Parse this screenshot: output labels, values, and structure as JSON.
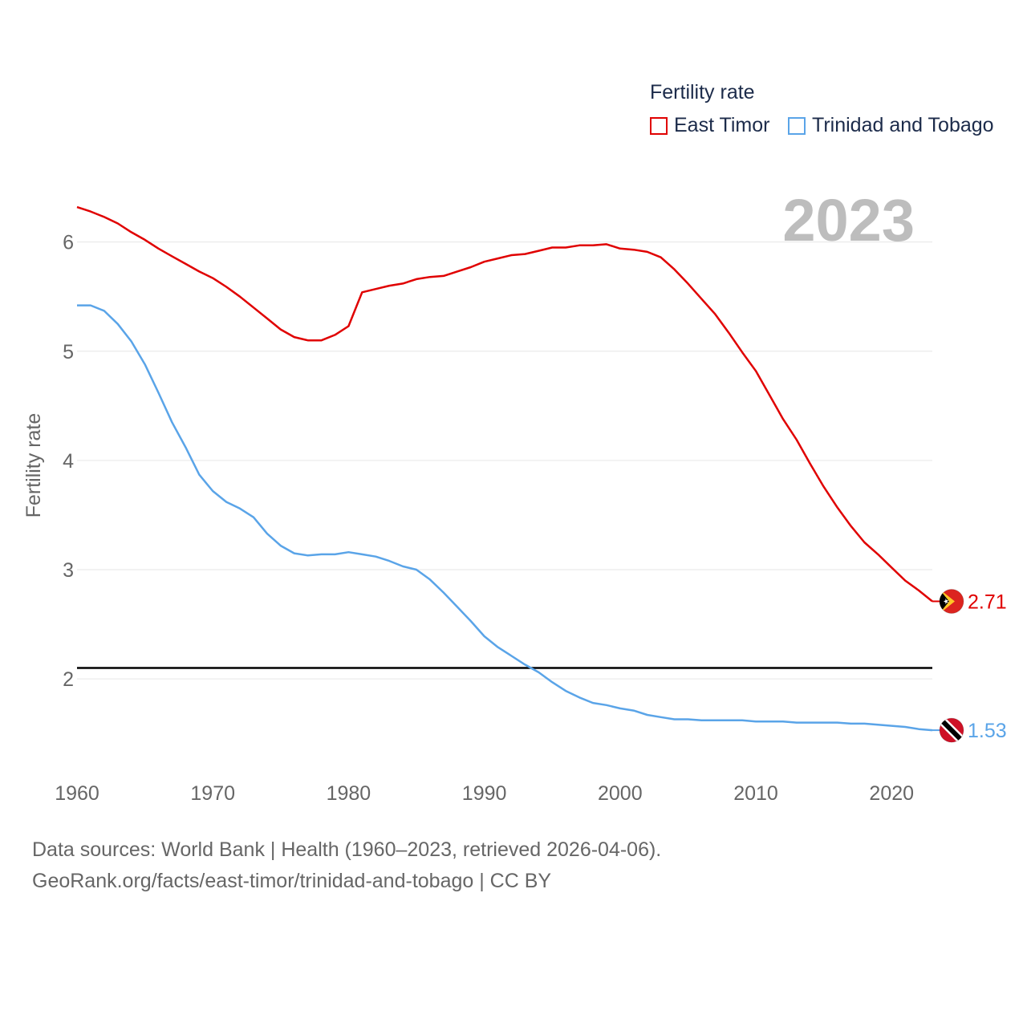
{
  "footer": {
    "line1": "Data sources: World Bank | Health (1960–2023, retrieved 2026-04-06).",
    "line2": "GeoRank.org/facts/east-timor/trinidad-and-tobago | CC BY"
  },
  "chart_data": {
    "type": "line",
    "title": "",
    "year_label": "2023",
    "legend_title": "Fertility rate",
    "xlabel": "",
    "ylabel": "Fertility rate",
    "xlim": [
      1960,
      2023
    ],
    "ylim": [
      1.2,
      6.6
    ],
    "x_ticks": [
      1960,
      1970,
      1980,
      1990,
      2000,
      2010,
      2020
    ],
    "y_ticks": [
      2,
      3,
      4,
      5,
      6
    ],
    "reference_line": {
      "y": 2.1,
      "color": "#000000"
    },
    "x": [
      1960,
      1961,
      1962,
      1963,
      1964,
      1965,
      1966,
      1967,
      1968,
      1969,
      1970,
      1971,
      1972,
      1973,
      1974,
      1975,
      1976,
      1977,
      1978,
      1979,
      1980,
      1981,
      1982,
      1983,
      1984,
      1985,
      1986,
      1987,
      1988,
      1989,
      1990,
      1991,
      1992,
      1993,
      1994,
      1995,
      1996,
      1997,
      1998,
      1999,
      2000,
      2001,
      2002,
      2003,
      2004,
      2005,
      2006,
      2007,
      2008,
      2009,
      2010,
      2011,
      2012,
      2013,
      2014,
      2015,
      2016,
      2017,
      2018,
      2019,
      2020,
      2021,
      2022,
      2023
    ],
    "series": [
      {
        "name": "East Timor",
        "color": "#e00000",
        "end_label": "2.71",
        "flag": "east-timor-flag-icon",
        "values": [
          6.32,
          6.28,
          6.23,
          6.17,
          6.09,
          6.02,
          5.94,
          5.87,
          5.8,
          5.73,
          5.67,
          5.59,
          5.5,
          5.4,
          5.3,
          5.2,
          5.13,
          5.1,
          5.1,
          5.15,
          5.23,
          5.54,
          5.57,
          5.6,
          5.62,
          5.66,
          5.68,
          5.69,
          5.73,
          5.77,
          5.82,
          5.85,
          5.88,
          5.89,
          5.92,
          5.95,
          5.95,
          5.97,
          5.97,
          5.98,
          5.94,
          5.93,
          5.91,
          5.86,
          5.75,
          5.62,
          5.48,
          5.34,
          5.17,
          4.99,
          4.82,
          4.6,
          4.38,
          4.19,
          3.97,
          3.76,
          3.57,
          3.4,
          3.25,
          3.14,
          3.02,
          2.9,
          2.81,
          2.71
        ]
      },
      {
        "name": "Trinidad and Tobago",
        "color": "#5aa4e8",
        "end_label": "1.53",
        "flag": "trinidad-and-tobago-flag-icon",
        "values": [
          5.42,
          5.42,
          5.37,
          5.25,
          5.09,
          4.88,
          4.62,
          4.35,
          4.12,
          3.87,
          3.72,
          3.62,
          3.56,
          3.48,
          3.33,
          3.22,
          3.15,
          3.13,
          3.14,
          3.14,
          3.16,
          3.14,
          3.12,
          3.08,
          3.03,
          3.0,
          2.91,
          2.79,
          2.66,
          2.53,
          2.39,
          2.29,
          2.21,
          2.13,
          2.06,
          1.97,
          1.89,
          1.83,
          1.78,
          1.76,
          1.73,
          1.71,
          1.67,
          1.65,
          1.63,
          1.63,
          1.62,
          1.62,
          1.62,
          1.62,
          1.61,
          1.61,
          1.61,
          1.6,
          1.6,
          1.6,
          1.6,
          1.59,
          1.59,
          1.58,
          1.57,
          1.56,
          1.54,
          1.53
        ]
      }
    ]
  }
}
